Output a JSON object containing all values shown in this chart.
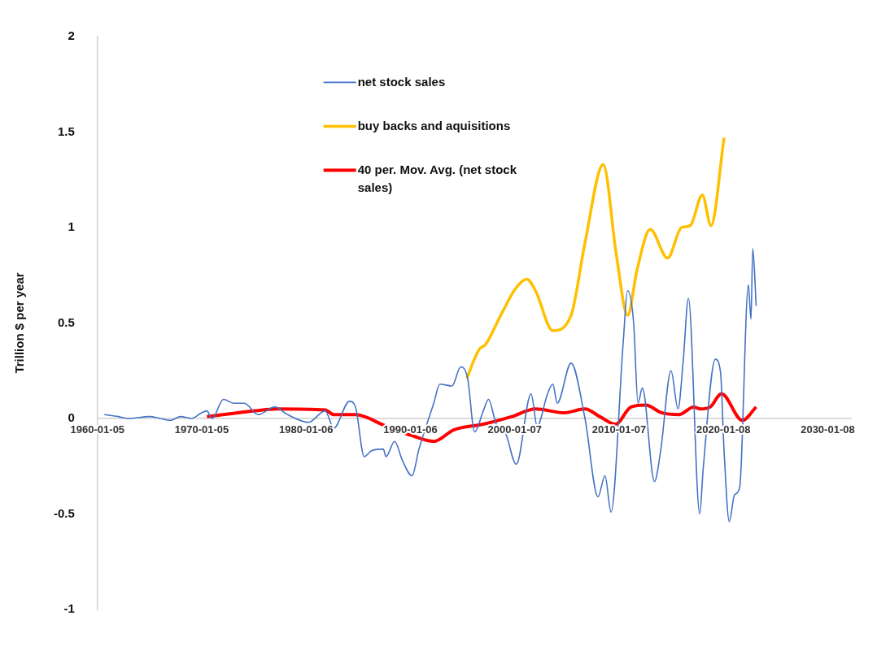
{
  "chart_data": {
    "type": "line",
    "ylabel": "Trillion $ per year",
    "xlim": [
      "1960-01-05",
      "2032-04"
    ],
    "xticks": [
      {
        "value": "1960-01-05",
        "label": "1960-01-05"
      },
      {
        "value": "1970-01-05",
        "label": "1970-01-05"
      },
      {
        "value": "1980-01-06",
        "label": "1980-01-06"
      },
      {
        "value": "1990-01-06",
        "label": "1990-01-06"
      },
      {
        "value": "2000-01-07",
        "label": "2000-01-07"
      },
      {
        "value": "2010-01-07",
        "label": "2010-01-07"
      },
      {
        "value": "2020-01-08",
        "label": "2020-01-08"
      },
      {
        "value": "2030-01-08",
        "label": "2030-01-08"
      }
    ],
    "ylim": [
      -1,
      2
    ],
    "yticks": [
      -1,
      -0.5,
      0,
      0.5,
      1,
      1.5,
      2
    ],
    "grid": false,
    "legend": "top",
    "marker": "none",
    "line_style": "solid",
    "series": [
      {
        "name": "net stock sales",
        "color": "#4472c4",
        "x": [
          "1960-09",
          "1962-01",
          "1963-01",
          "1965-01",
          "1966-01",
          "1967-01",
          "1968-01",
          "1969-01",
          "1970-01",
          "1970-07",
          "1971-01",
          "1972-02",
          "1973-02",
          "1974-02",
          "1975-06",
          "1977-01",
          "1978-04",
          "1980-04",
          "1981-11",
          "1982-09",
          "1984-03",
          "1984-10",
          "1985-08",
          "1986-04",
          "1987-06",
          "1987-09",
          "1988-07",
          "1989-04",
          "1990-03",
          "1990-11",
          "1992-04",
          "1992-11",
          "1994-01",
          "1994-11",
          "1995-07",
          "1996-03",
          "1997-01",
          "1997-07",
          "1998-04",
          "1999-02",
          "2000-03",
          "2001-08",
          "2002-03",
          "2003-03",
          "2003-09",
          "2004-02",
          "2005-06",
          "2006-10",
          "2008-01",
          "2008-09",
          "2009-04",
          "2010-06",
          "2010-11",
          "2011-06",
          "2011-11",
          "2012-04",
          "2013-06",
          "2014-01",
          "2015-01",
          "2015-09",
          "2016-03",
          "2016-09",
          "2017-10",
          "2018-02",
          "2019-04",
          "2019-10",
          "2020-02",
          "2020-08",
          "2021-02",
          "2021-08",
          "2022-06",
          "2022-09",
          "2022-11",
          "2023-03"
        ],
        "values": [
          0.02,
          0.01,
          0.0,
          0.01,
          0.0,
          -0.01,
          0.01,
          0.0,
          0.03,
          0.04,
          0.0,
          0.1,
          0.08,
          0.08,
          0.02,
          0.06,
          0.02,
          -0.02,
          0.04,
          -0.05,
          0.09,
          0.06,
          -0.2,
          -0.17,
          -0.16,
          -0.2,
          -0.12,
          -0.22,
          -0.3,
          -0.16,
          0.08,
          0.18,
          0.17,
          0.27,
          0.21,
          -0.07,
          0.04,
          0.1,
          -0.03,
          -0.07,
          -0.24,
          0.13,
          -0.04,
          0.13,
          0.18,
          0.08,
          0.29,
          0.0,
          -0.41,
          -0.3,
          -0.49,
          0.4,
          0.67,
          0.5,
          0.08,
          0.16,
          -0.33,
          -0.17,
          0.25,
          0.05,
          0.3,
          0.63,
          -0.5,
          -0.26,
          0.31,
          0.24,
          -0.17,
          -0.54,
          -0.4,
          -0.36,
          0.7,
          0.52,
          0.89,
          0.59
        ]
      },
      {
        "name": "buy backs and aquisitions",
        "color": "#ffc000",
        "x": [
          "1995-06",
          "1996-08",
          "1997-04",
          "1998-09",
          "2000-02",
          "2001-03",
          "2002-01",
          "2003-09",
          "2005-06",
          "2006-10",
          "2008-07",
          "2009-10",
          "2010-11",
          "2011-10",
          "2013-01",
          "2014-09",
          "2016-01",
          "2016-11",
          "2018-01",
          "2018-11",
          "2020-02"
        ],
        "values": [
          0.21,
          0.36,
          0.39,
          0.54,
          0.68,
          0.73,
          0.67,
          0.46,
          0.54,
          0.92,
          1.33,
          0.86,
          0.54,
          0.78,
          0.99,
          0.84,
          1.0,
          1.01,
          1.17,
          1.01,
          1.47
        ]
      },
      {
        "name": "40 per. Mov. Avg. (net stock sales)",
        "color": "#ff0000",
        "x": [
          "1970-07",
          "1975-03",
          "1977-03",
          "1981-11",
          "1982-09",
          "1984-10",
          "1987-09",
          "1990-03",
          "1992-04",
          "1994-03",
          "1997-01",
          "1999-10",
          "2002-01",
          "2004-10",
          "2006-10",
          "2008-03",
          "2009-09",
          "2011-03",
          "2012-08",
          "2014-02",
          "2015-10",
          "2017-03",
          "2017-11",
          "2018-10",
          "2019-11",
          "2021-11",
          "2023-03"
        ],
        "values": [
          0.01,
          0.04,
          0.05,
          0.045,
          0.02,
          0.02,
          -0.04,
          -0.09,
          -0.12,
          -0.06,
          -0.03,
          0.01,
          0.05,
          0.03,
          0.05,
          0.01,
          -0.03,
          0.06,
          0.07,
          0.03,
          0.02,
          0.06,
          0.05,
          0.06,
          0.13,
          -0.01,
          0.06
        ]
      }
    ]
  }
}
